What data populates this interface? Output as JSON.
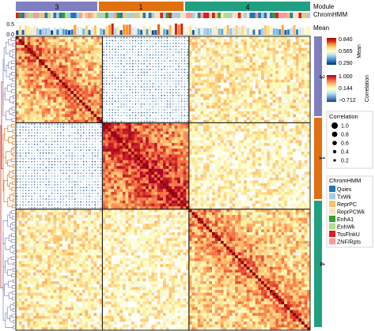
{
  "chart_data": {
    "type": "heatmap",
    "modules": [
      {
        "label": "3",
        "color": "#8080c0",
        "n": 30
      },
      {
        "label": "1",
        "color": "#e07010",
        "n": 30
      },
      {
        "label": "4",
        "color": "#20a080",
        "n": 42
      }
    ],
    "annotation_labels": {
      "module": "Module",
      "chromhmm": "ChromHMM",
      "mean": "Mean"
    },
    "mean_axis_ticks": [
      "0.5",
      "0.0"
    ],
    "legends": {
      "mean": {
        "title": "Mean",
        "ticks": [
          "0.840",
          "0.565",
          "0.290"
        ],
        "range": [
          0.29,
          0.84
        ],
        "colors": [
          "#08306b",
          "#2171b5",
          "#6baed6",
          "#c6dbef",
          "#ffffd4",
          "#fee391",
          "#fe9929",
          "#d7301f",
          "#b30000"
        ]
      },
      "correlation": {
        "title": "Correlation",
        "ticks": [
          "1.000",
          "0.144",
          "−0.712"
        ],
        "range": [
          -0.712,
          1.0
        ],
        "colors": [
          "#313695",
          "#4575b4",
          "#74add1",
          "#abd9e9",
          "#e0f3f8",
          "#ffffbf",
          "#fee090",
          "#fdae61",
          "#f46d43",
          "#d73027",
          "#a50026"
        ]
      },
      "size": {
        "title": "Correlation",
        "values": [
          "1.0",
          "0.8",
          "0.6",
          "0.4",
          "0.2"
        ]
      },
      "chromhmm": {
        "title": "ChromHMM",
        "items": [
          {
            "label": "Quies",
            "color": "#1f78b4"
          },
          {
            "label": "TxWk",
            "color": "#a6cee3"
          },
          {
            "label": "ReprPC",
            "color": "#fdbf6f"
          },
          {
            "label": "ReprPCWk",
            "color": "#fbe3b8"
          },
          {
            "label": "EnhA1",
            "color": "#33a02c"
          },
          {
            "label": "EnhWk",
            "color": "#b2df8a"
          },
          {
            "label": "TssFlnkU",
            "color": "#e31a1c"
          },
          {
            "label": "ZNF/Rpts",
            "color": "#fb9a99"
          }
        ]
      }
    }
  }
}
